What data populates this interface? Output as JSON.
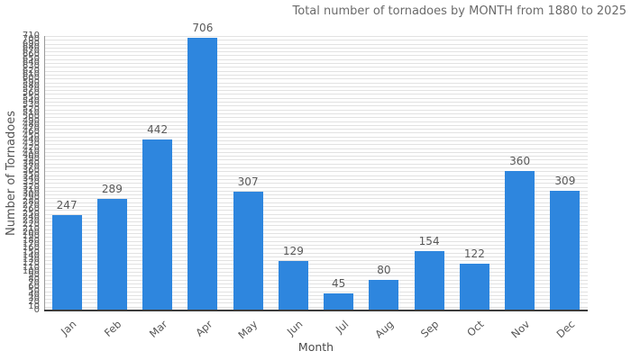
{
  "figure": {
    "title": "Total number of tornadoes by MONTH from 1880 to 2025"
  },
  "chart_data": {
    "type": "bar",
    "title": "Total number of tornadoes by MONTH from 1880 to 2025",
    "categories": [
      "Jan",
      "Feb",
      "Mar",
      "Apr",
      "May",
      "Jun",
      "Jul",
      "Aug",
      "Sep",
      "Oct",
      "Nov",
      "Dec"
    ],
    "values": [
      247,
      289,
      442,
      706,
      307,
      129,
      45,
      80,
      154,
      122,
      360,
      309
    ],
    "xlabel": "Month",
    "ylabel": "Number of Tornadoes",
    "ylim": [
      0,
      710
    ],
    "ytick_step": 10,
    "grid": true,
    "legend": "none",
    "bar_color": "#2E86DE",
    "gridline_color": "#e2e2e2",
    "text_color": "#555555",
    "title_color": "#6b6b6b"
  }
}
